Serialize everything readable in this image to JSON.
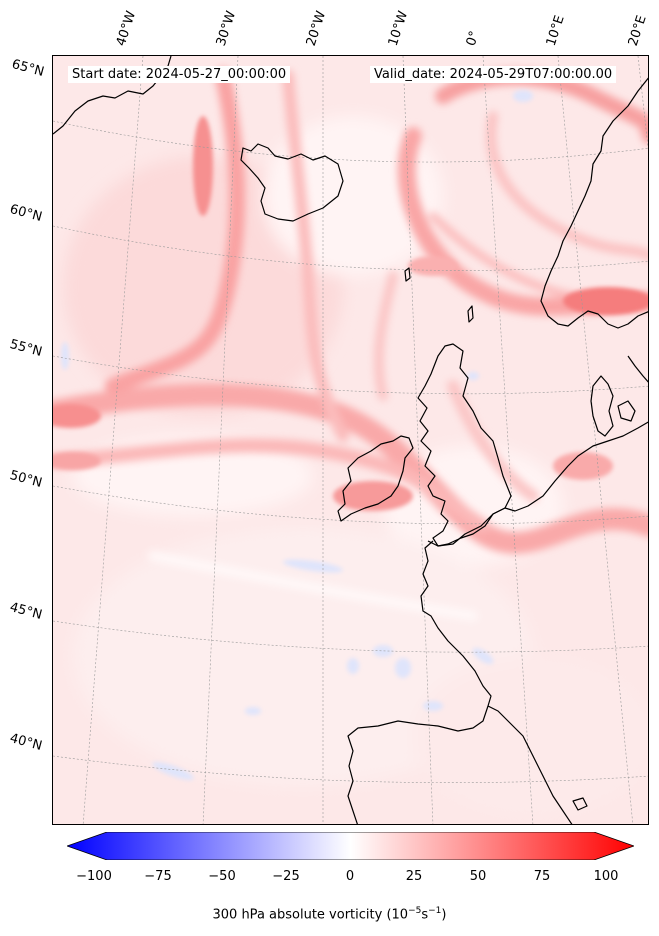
{
  "header": {
    "start_date": "Start date: 2024-05-27_00:00:00",
    "valid_date": "Valid_date: 2024-05-29T07:00:00.00"
  },
  "longitude_labels": [
    "40°W",
    "30°W",
    "20°W",
    "10°W",
    "0°",
    "10°E",
    "20°E"
  ],
  "latitude_labels": [
    "65°N",
    "60°N",
    "55°N",
    "50°N",
    "45°N",
    "40°N"
  ],
  "colorbar": {
    "ticks": [
      "−100",
      "−75",
      "−50",
      "−25",
      "0",
      "25",
      "50",
      "75",
      "100"
    ],
    "label_prefix": "300 hPa absolute vorticity (10",
    "label_exp1": "−5",
    "label_mid": "s",
    "label_exp2": "−1",
    "label_suffix": ")",
    "min_color": "#0000ff",
    "mid_color": "#ffffff",
    "max_color": "#ff0000"
  }
}
